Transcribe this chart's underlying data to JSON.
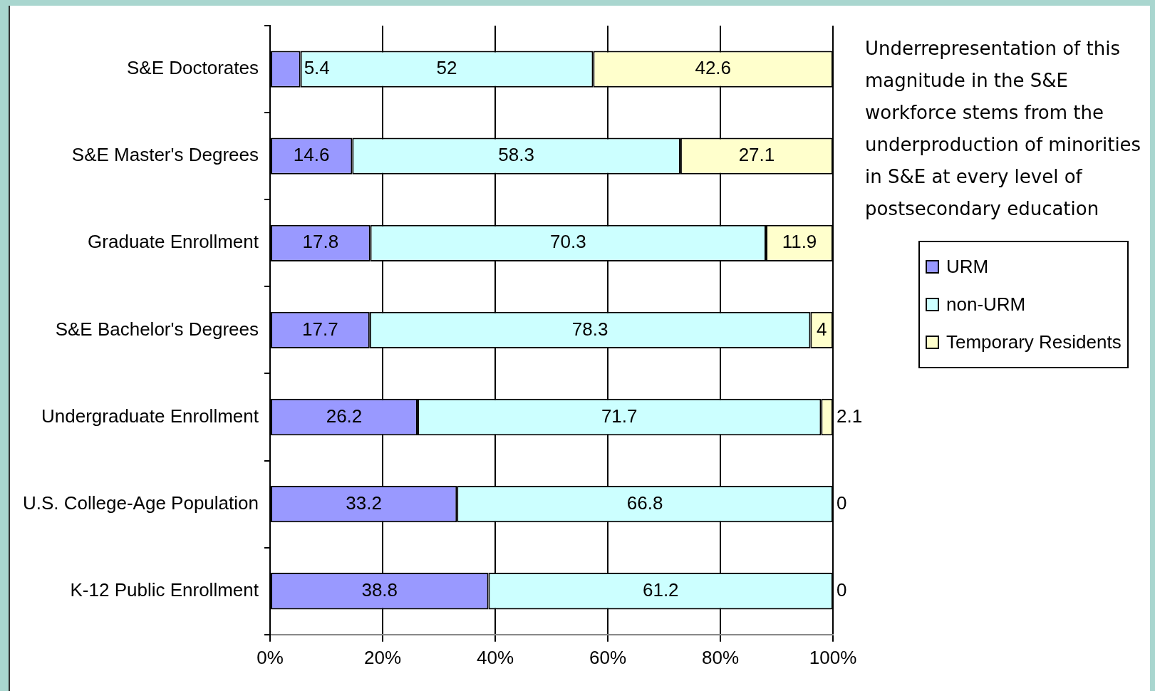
{
  "chart_data": {
    "type": "bar",
    "orientation": "horizontal",
    "stacked": true,
    "categories": [
      "S&E Doctorates",
      "S&E Master's Degrees",
      "Graduate Enrollment",
      "S&E Bachelor's Degrees",
      "Undergraduate Enrollment",
      "U.S. College-Age Population",
      "K-12 Public Enrollment"
    ],
    "series": [
      {
        "name": "URM",
        "color": "#9999ff",
        "values": [
          5.4,
          14.6,
          17.8,
          17.7,
          26.2,
          33.2,
          38.8
        ]
      },
      {
        "name": "non-URM",
        "color": "#ccffff",
        "values": [
          52,
          58.3,
          70.3,
          78.3,
          71.7,
          66.8,
          61.2
        ]
      },
      {
        "name": "Temporary Residents",
        "color": "#ffffcc",
        "values": [
          42.6,
          27.1,
          11.9,
          4,
          2.1,
          0,
          0
        ]
      }
    ],
    "xlim": [
      0,
      100
    ],
    "xticks": [
      {
        "value": 0,
        "label": "0%"
      },
      {
        "value": 20,
        "label": "20%"
      },
      {
        "value": 40,
        "label": "40%"
      },
      {
        "value": 60,
        "label": "60%"
      },
      {
        "value": 80,
        "label": "80%"
      },
      {
        "value": 100,
        "label": "100%"
      }
    ],
    "data_labels": true,
    "grid": "x",
    "legend": "right",
    "annotations": [
      "Underrepresentation of this magnitude in the S&E workforce stems from the underproduction of minorities in S&E at every level of postsecondary education"
    ]
  }
}
